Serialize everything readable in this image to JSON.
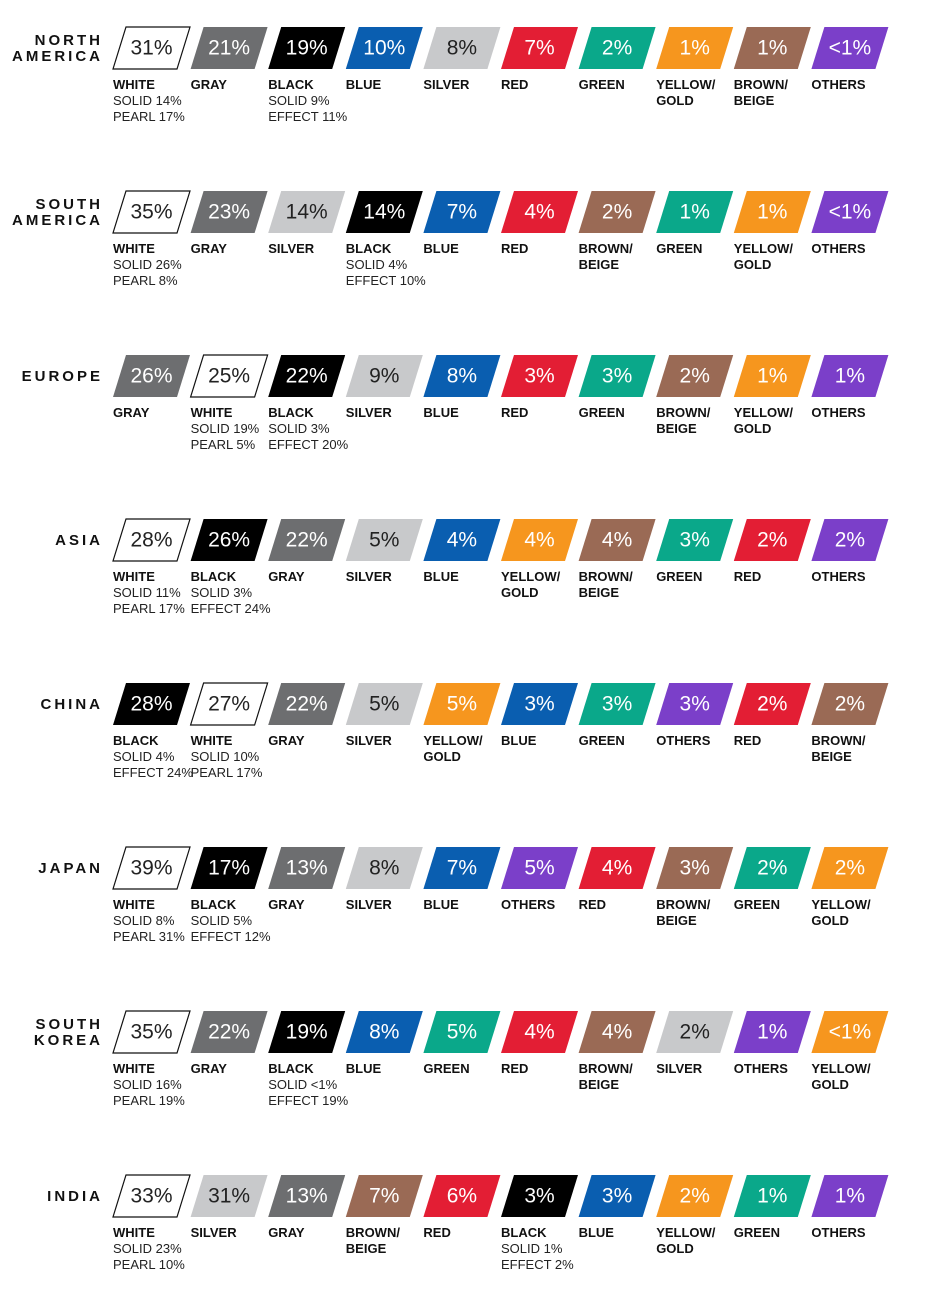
{
  "regions": [
    {
      "name": [
        "NORTH",
        "AMERICA"
      ],
      "items": [
        {
          "pct": "31%",
          "label": [
            "WHITE"
          ],
          "details": [
            "SOLID 14%",
            "PEARL 17%"
          ],
          "color": "#ffffff"
        },
        {
          "pct": "21%",
          "label": [
            "GRAY"
          ],
          "color": "#6d6e70"
        },
        {
          "pct": "19%",
          "label": [
            "BLACK"
          ],
          "details": [
            "SOLID 9%",
            "EFFECT 11%"
          ],
          "color": "#000000"
        },
        {
          "pct": "10%",
          "label": [
            "BLUE"
          ],
          "color": "#0a5eb0"
        },
        {
          "pct": "8%",
          "label": [
            "SILVER"
          ],
          "color": "#c8c9cb"
        },
        {
          "pct": "7%",
          "label": [
            "RED"
          ],
          "color": "#e31e34"
        },
        {
          "pct": "2%",
          "label": [
            "GREEN"
          ],
          "color": "#0aa88a"
        },
        {
          "pct": "1%",
          "label": [
            "YELLOW/",
            "GOLD"
          ],
          "color": "#f6961e"
        },
        {
          "pct": "1%",
          "label": [
            "BROWN/",
            "BEIGE"
          ],
          "color": "#9a6a55"
        },
        {
          "pct": "<1%",
          "label": [
            "OTHERS"
          ],
          "color": "#7b3fc9"
        }
      ]
    },
    {
      "name": [
        "SOUTH",
        "AMERICA"
      ],
      "items": [
        {
          "pct": "35%",
          "label": [
            "WHITE"
          ],
          "details": [
            "SOLID 26%",
            "PEARL 8%"
          ],
          "color": "#ffffff"
        },
        {
          "pct": "23%",
          "label": [
            "GRAY"
          ],
          "color": "#6d6e70"
        },
        {
          "pct": "14%",
          "label": [
            "SILVER"
          ],
          "color": "#c8c9cb"
        },
        {
          "pct": "14%",
          "label": [
            "BLACK"
          ],
          "details": [
            "SOLID 4%",
            "EFFECT 10%"
          ],
          "color": "#000000"
        },
        {
          "pct": "7%",
          "label": [
            "BLUE"
          ],
          "color": "#0a5eb0"
        },
        {
          "pct": "4%",
          "label": [
            "RED"
          ],
          "color": "#e31e34"
        },
        {
          "pct": "2%",
          "label": [
            "BROWN/",
            "BEIGE"
          ],
          "color": "#9a6a55"
        },
        {
          "pct": "1%",
          "label": [
            "GREEN"
          ],
          "color": "#0aa88a"
        },
        {
          "pct": "1%",
          "label": [
            "YELLOW/",
            "GOLD"
          ],
          "color": "#f6961e"
        },
        {
          "pct": "<1%",
          "label": [
            "OTHERS"
          ],
          "color": "#7b3fc9"
        }
      ]
    },
    {
      "name": [
        "EUROPE"
      ],
      "items": [
        {
          "pct": "26%",
          "label": [
            "GRAY"
          ],
          "color": "#6d6e70"
        },
        {
          "pct": "25%",
          "label": [
            "WHITE"
          ],
          "details": [
            "SOLID 19%",
            "PEARL 5%"
          ],
          "color": "#ffffff"
        },
        {
          "pct": "22%",
          "label": [
            "BLACK"
          ],
          "details": [
            "SOLID 3%",
            "EFFECT 20%"
          ],
          "color": "#000000"
        },
        {
          "pct": "9%",
          "label": [
            "SILVER"
          ],
          "color": "#c8c9cb"
        },
        {
          "pct": "8%",
          "label": [
            "BLUE"
          ],
          "color": "#0a5eb0"
        },
        {
          "pct": "3%",
          "label": [
            "RED"
          ],
          "color": "#e31e34"
        },
        {
          "pct": "3%",
          "label": [
            "GREEN"
          ],
          "color": "#0aa88a"
        },
        {
          "pct": "2%",
          "label": [
            "BROWN/",
            "BEIGE"
          ],
          "color": "#9a6a55"
        },
        {
          "pct": "1%",
          "label": [
            "YELLOW/",
            "GOLD"
          ],
          "color": "#f6961e"
        },
        {
          "pct": "1%",
          "label": [
            "OTHERS"
          ],
          "color": "#7b3fc9"
        }
      ]
    },
    {
      "name": [
        "ASIA"
      ],
      "items": [
        {
          "pct": "28%",
          "label": [
            "WHITE"
          ],
          "details": [
            "SOLID 11%",
            "PEARL 17%"
          ],
          "color": "#ffffff"
        },
        {
          "pct": "26%",
          "label": [
            "BLACK"
          ],
          "details": [
            "SOLID 3%",
            "EFFECT 24%"
          ],
          "color": "#000000"
        },
        {
          "pct": "22%",
          "label": [
            "GRAY"
          ],
          "color": "#6d6e70"
        },
        {
          "pct": "5%",
          "label": [
            "SILVER"
          ],
          "color": "#c8c9cb"
        },
        {
          "pct": "4%",
          "label": [
            "BLUE"
          ],
          "color": "#0a5eb0"
        },
        {
          "pct": "4%",
          "label": [
            "YELLOW/",
            "GOLD"
          ],
          "color": "#f6961e"
        },
        {
          "pct": "4%",
          "label": [
            "BROWN/",
            "BEIGE"
          ],
          "color": "#9a6a55"
        },
        {
          "pct": "3%",
          "label": [
            "GREEN"
          ],
          "color": "#0aa88a"
        },
        {
          "pct": "2%",
          "label": [
            "RED"
          ],
          "color": "#e31e34"
        },
        {
          "pct": "2%",
          "label": [
            "OTHERS"
          ],
          "color": "#7b3fc9"
        }
      ]
    },
    {
      "name": [
        "CHINA"
      ],
      "items": [
        {
          "pct": "28%",
          "label": [
            "BLACK"
          ],
          "details": [
            "SOLID 4%",
            "EFFECT 24%"
          ],
          "color": "#000000"
        },
        {
          "pct": "27%",
          "label": [
            "WHITE"
          ],
          "details": [
            "SOLID 10%",
            "PEARL 17%"
          ],
          "color": "#ffffff"
        },
        {
          "pct": "22%",
          "label": [
            "GRAY"
          ],
          "color": "#6d6e70"
        },
        {
          "pct": "5%",
          "label": [
            "SILVER"
          ],
          "color": "#c8c9cb"
        },
        {
          "pct": "5%",
          "label": [
            "YELLOW/",
            "GOLD"
          ],
          "color": "#f6961e"
        },
        {
          "pct": "3%",
          "label": [
            "BLUE"
          ],
          "color": "#0a5eb0"
        },
        {
          "pct": "3%",
          "label": [
            "GREEN"
          ],
          "color": "#0aa88a"
        },
        {
          "pct": "3%",
          "label": [
            "OTHERS"
          ],
          "color": "#7b3fc9"
        },
        {
          "pct": "2%",
          "label": [
            "RED"
          ],
          "color": "#e31e34"
        },
        {
          "pct": "2%",
          "label": [
            "BROWN/",
            "BEIGE"
          ],
          "color": "#9a6a55"
        }
      ]
    },
    {
      "name": [
        "JAPAN"
      ],
      "items": [
        {
          "pct": "39%",
          "label": [
            "WHITE"
          ],
          "details": [
            "SOLID 8%",
            "PEARL 31%"
          ],
          "color": "#ffffff"
        },
        {
          "pct": "17%",
          "label": [
            "BLACK"
          ],
          "details": [
            "SOLID 5%",
            "EFFECT 12%"
          ],
          "color": "#000000"
        },
        {
          "pct": "13%",
          "label": [
            "GRAY"
          ],
          "color": "#6d6e70"
        },
        {
          "pct": "8%",
          "label": [
            "SILVER"
          ],
          "color": "#c8c9cb"
        },
        {
          "pct": "7%",
          "label": [
            "BLUE"
          ],
          "color": "#0a5eb0"
        },
        {
          "pct": "5%",
          "label": [
            "OTHERS"
          ],
          "color": "#7b3fc9"
        },
        {
          "pct": "4%",
          "label": [
            "RED"
          ],
          "color": "#e31e34"
        },
        {
          "pct": "3%",
          "label": [
            "BROWN/",
            "BEIGE"
          ],
          "color": "#9a6a55"
        },
        {
          "pct": "2%",
          "label": [
            "GREEN"
          ],
          "color": "#0aa88a"
        },
        {
          "pct": "2%",
          "label": [
            "YELLOW/",
            "GOLD"
          ],
          "color": "#f6961e"
        }
      ]
    },
    {
      "name": [
        "SOUTH",
        "KOREA"
      ],
      "items": [
        {
          "pct": "35%",
          "label": [
            "WHITE"
          ],
          "details": [
            "SOLID 16%",
            "PEARL 19%"
          ],
          "color": "#ffffff"
        },
        {
          "pct": "22%",
          "label": [
            "GRAY"
          ],
          "color": "#6d6e70"
        },
        {
          "pct": "19%",
          "label": [
            "BLACK"
          ],
          "details": [
            "SOLID <1%",
            "EFFECT 19%"
          ],
          "color": "#000000"
        },
        {
          "pct": "8%",
          "label": [
            "BLUE"
          ],
          "color": "#0a5eb0"
        },
        {
          "pct": "5%",
          "label": [
            "GREEN"
          ],
          "color": "#0aa88a"
        },
        {
          "pct": "4%",
          "label": [
            "RED"
          ],
          "color": "#e31e34"
        },
        {
          "pct": "4%",
          "label": [
            "BROWN/",
            "BEIGE"
          ],
          "color": "#9a6a55"
        },
        {
          "pct": "2%",
          "label": [
            "SILVER"
          ],
          "color": "#c8c9cb"
        },
        {
          "pct": "1%",
          "label": [
            "OTHERS"
          ],
          "color": "#7b3fc9"
        },
        {
          "pct": "<1%",
          "label": [
            "YELLOW/",
            "GOLD"
          ],
          "color": "#f6961e"
        }
      ]
    },
    {
      "name": [
        "INDIA"
      ],
      "items": [
        {
          "pct": "33%",
          "label": [
            "WHITE"
          ],
          "details": [
            "SOLID 23%",
            "PEARL 10%"
          ],
          "color": "#ffffff"
        },
        {
          "pct": "31%",
          "label": [
            "SILVER"
          ],
          "color": "#c8c9cb"
        },
        {
          "pct": "13%",
          "label": [
            "GRAY"
          ],
          "color": "#6d6e70"
        },
        {
          "pct": "7%",
          "label": [
            "BROWN/",
            "BEIGE"
          ],
          "color": "#9a6a55"
        },
        {
          "pct": "6%",
          "label": [
            "RED"
          ],
          "color": "#e31e34"
        },
        {
          "pct": "3%",
          "label": [
            "BLACK"
          ],
          "details": [
            "SOLID 1%",
            "EFFECT 2%"
          ],
          "color": "#000000"
        },
        {
          "pct": "3%",
          "label": [
            "BLUE"
          ],
          "color": "#0a5eb0"
        },
        {
          "pct": "2%",
          "label": [
            "YELLOW/",
            "GOLD"
          ],
          "color": "#f6961e"
        },
        {
          "pct": "1%",
          "label": [
            "GREEN"
          ],
          "color": "#0aa88a"
        },
        {
          "pct": "1%",
          "label": [
            "OTHERS"
          ],
          "color": "#7b3fc9"
        }
      ]
    }
  ]
}
